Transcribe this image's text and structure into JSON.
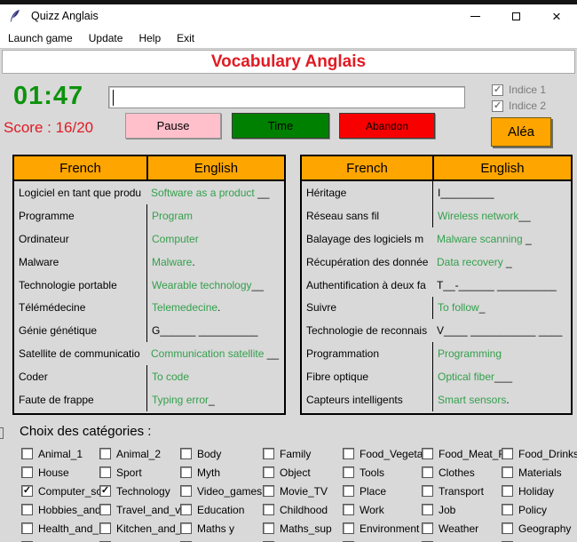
{
  "window": {
    "title": "Quizz Anglais",
    "close_glyph": "×"
  },
  "menu": {
    "items": [
      "Launch game",
      "Update",
      "Help",
      "Exit"
    ]
  },
  "banner": {
    "title": "Vocabulary Anglais"
  },
  "hud": {
    "timer": "01:47",
    "score": "Score : 16/20",
    "answer_input": {
      "value": "",
      "placeholder": ""
    },
    "indices": [
      {
        "label": "Indice 1",
        "checked": true
      },
      {
        "label": "Indice 2",
        "checked": true
      }
    ],
    "buttons": {
      "pause": "Pause",
      "time": "Time",
      "abandon": "Abandon",
      "alea": "Aléa"
    }
  },
  "colors": {
    "header_orange": "#ffa500",
    "answer_green": "#33a04c",
    "timer_green": "#0d930d",
    "title_red": "#e01b24",
    "pause_pink": "#ffc0cb",
    "time_green": "#008000",
    "abandon_red": "#f80000",
    "alea_orange": "#ffa500",
    "window_gray": "#d9d9d9"
  },
  "tables": [
    {
      "headers": [
        "French",
        "English"
      ],
      "rows": [
        {
          "fr": "Logiciel en tant que produ",
          "en": "Software as a product",
          "suffix": " __",
          "answered": true,
          "sep": false
        },
        {
          "fr": "Programme",
          "en": "Program",
          "suffix": "",
          "answered": true,
          "sep": true
        },
        {
          "fr": "Ordinateur",
          "en": "Computer",
          "suffix": "",
          "answered": true,
          "sep": true
        },
        {
          "fr": "Malware",
          "en": "Malware",
          "suffix": " .",
          "answered": true,
          "sep": true
        },
        {
          "fr": "Technologie portable",
          "en": "Wearable technology",
          "suffix": " __",
          "answered": true,
          "sep": true
        },
        {
          "fr": "Télémédecine",
          "en": "Telemedecine",
          "suffix": " .",
          "answered": true,
          "sep": true
        },
        {
          "fr": "Génie génétique",
          "en": "G______ __________",
          "suffix": "",
          "answered": false,
          "sep": true
        },
        {
          "fr": "Satellite de communicatio",
          "en": "Communication satellite",
          "suffix": " __",
          "answered": true,
          "sep": false
        },
        {
          "fr": "Coder",
          "en": "To code",
          "suffix": "",
          "answered": true,
          "sep": true
        },
        {
          "fr": "Faute de frappe",
          "en": "Typing error",
          "suffix": " _",
          "answered": true,
          "sep": true
        }
      ]
    },
    {
      "headers": [
        "French",
        "English"
      ],
      "rows": [
        {
          "fr": "Héritage",
          "en": "I_________",
          "suffix": "",
          "answered": false,
          "sep": true
        },
        {
          "fr": "Réseau sans fil",
          "en": "Wireless network",
          "suffix": " __",
          "answered": true,
          "sep": true
        },
        {
          "fr": "Balayage des logiciels m",
          "en": "Malware scanning",
          "suffix": " _",
          "answered": true,
          "sep": false
        },
        {
          "fr": "Récupération des donnée",
          "en": "Data recovery",
          "suffix": " _",
          "answered": true,
          "sep": false
        },
        {
          "fr": "Authentification à deux fa",
          "en": "T__-______ __________",
          "suffix": "",
          "answered": false,
          "sep": false
        },
        {
          "fr": "Suivre",
          "en": "To follow",
          "suffix": " _",
          "answered": true,
          "sep": true
        },
        {
          "fr": "Technologie de reconnais",
          "en": "V____ ___________ ____",
          "suffix": "",
          "answered": false,
          "sep": false
        },
        {
          "fr": "Programmation",
          "en": "Programming",
          "suffix": "",
          "answered": true,
          "sep": true
        },
        {
          "fr": "Fibre optique",
          "en": "Optical fiber",
          "suffix": " ___",
          "answered": true,
          "sep": true
        },
        {
          "fr": "Capteurs intelligents",
          "en": "Smart sensors",
          "suffix": " .",
          "answered": true,
          "sep": true
        }
      ]
    }
  ],
  "categories": {
    "label": "Choix des catégories :",
    "rows": [
      [
        {
          "label": "Animal_1",
          "checked": false
        },
        {
          "label": "Animal_2",
          "checked": false
        },
        {
          "label": "Body",
          "checked": false
        },
        {
          "label": "Family",
          "checked": false
        },
        {
          "label": "Food_Vegeta",
          "checked": false
        },
        {
          "label": "Food_Meat_F",
          "checked": false
        },
        {
          "label": "Food_Drinks_",
          "checked": false
        }
      ],
      [
        {
          "label": "House",
          "checked": false
        },
        {
          "label": "Sport",
          "checked": false
        },
        {
          "label": "Myth",
          "checked": false
        },
        {
          "label": "Object",
          "checked": false
        },
        {
          "label": "Tools",
          "checked": false
        },
        {
          "label": "Clothes",
          "checked": false
        },
        {
          "label": "Materials",
          "checked": false
        }
      ],
      [
        {
          "label": "Computer_sc",
          "checked": true
        },
        {
          "label": "Technology",
          "checked": true
        },
        {
          "label": "Video_games",
          "checked": false
        },
        {
          "label": "Movie_TV",
          "checked": false
        },
        {
          "label": "Place",
          "checked": false
        },
        {
          "label": "Transport",
          "checked": false
        },
        {
          "label": "Holiday",
          "checked": false
        }
      ],
      [
        {
          "label": "Hobbies_and",
          "checked": false
        },
        {
          "label": "Travel_and_v",
          "checked": false
        },
        {
          "label": "Education",
          "checked": false
        },
        {
          "label": "Childhood",
          "checked": false
        },
        {
          "label": "Work",
          "checked": false
        },
        {
          "label": "Job",
          "checked": false
        },
        {
          "label": "Policy",
          "checked": false
        }
      ],
      [
        {
          "label": "Health_and_",
          "checked": false
        },
        {
          "label": "Kitchen_and_",
          "checked": false
        },
        {
          "label": "Maths y",
          "checked": false
        },
        {
          "label": "Maths_sup",
          "checked": false
        },
        {
          "label": "Environment",
          "checked": false
        },
        {
          "label": "Weather",
          "checked": false
        },
        {
          "label": "Geography",
          "checked": false
        }
      ]
    ],
    "cutoff_row_boxes": 7
  }
}
